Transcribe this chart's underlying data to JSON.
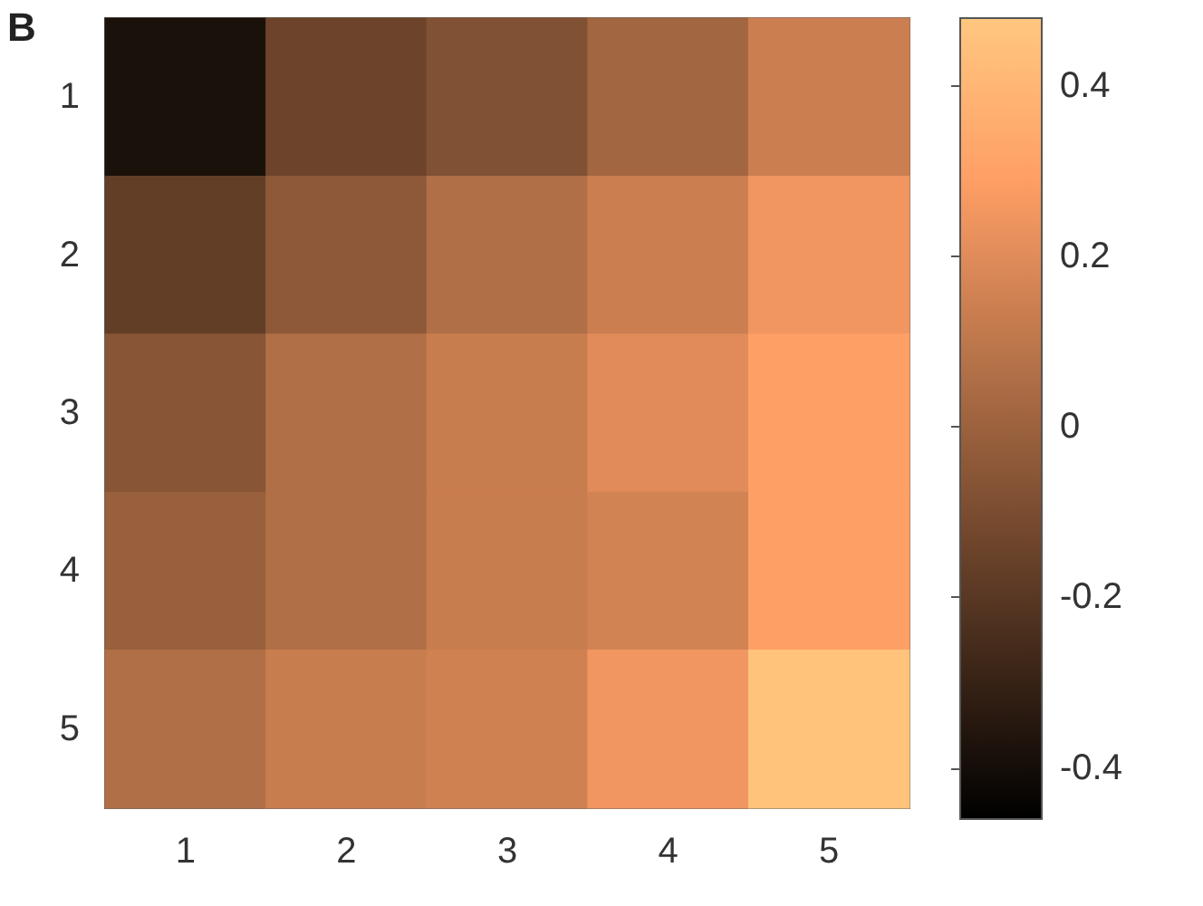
{
  "chart_data": {
    "type": "heatmap",
    "annotations": [
      "B"
    ],
    "categories": [
      "1",
      "2",
      "3",
      "4",
      "5"
    ],
    "y_categories": [
      "1",
      "2",
      "3",
      "4",
      "5"
    ],
    "cells": [
      [
        -0.38,
        -0.14,
        -0.08,
        0.02,
        0.14
      ],
      [
        -0.17,
        -0.04,
        0.06,
        0.14,
        0.25
      ],
      [
        -0.06,
        0.06,
        0.13,
        0.2,
        0.29
      ],
      [
        -0.01,
        0.06,
        0.13,
        0.16,
        0.29
      ],
      [
        0.06,
        0.13,
        0.15,
        0.25,
        0.46
      ]
    ],
    "clim": [
      -0.46,
      0.48
    ],
    "cticks": [
      -0.4,
      -0.2,
      0,
      0.2,
      0.4
    ]
  }
}
